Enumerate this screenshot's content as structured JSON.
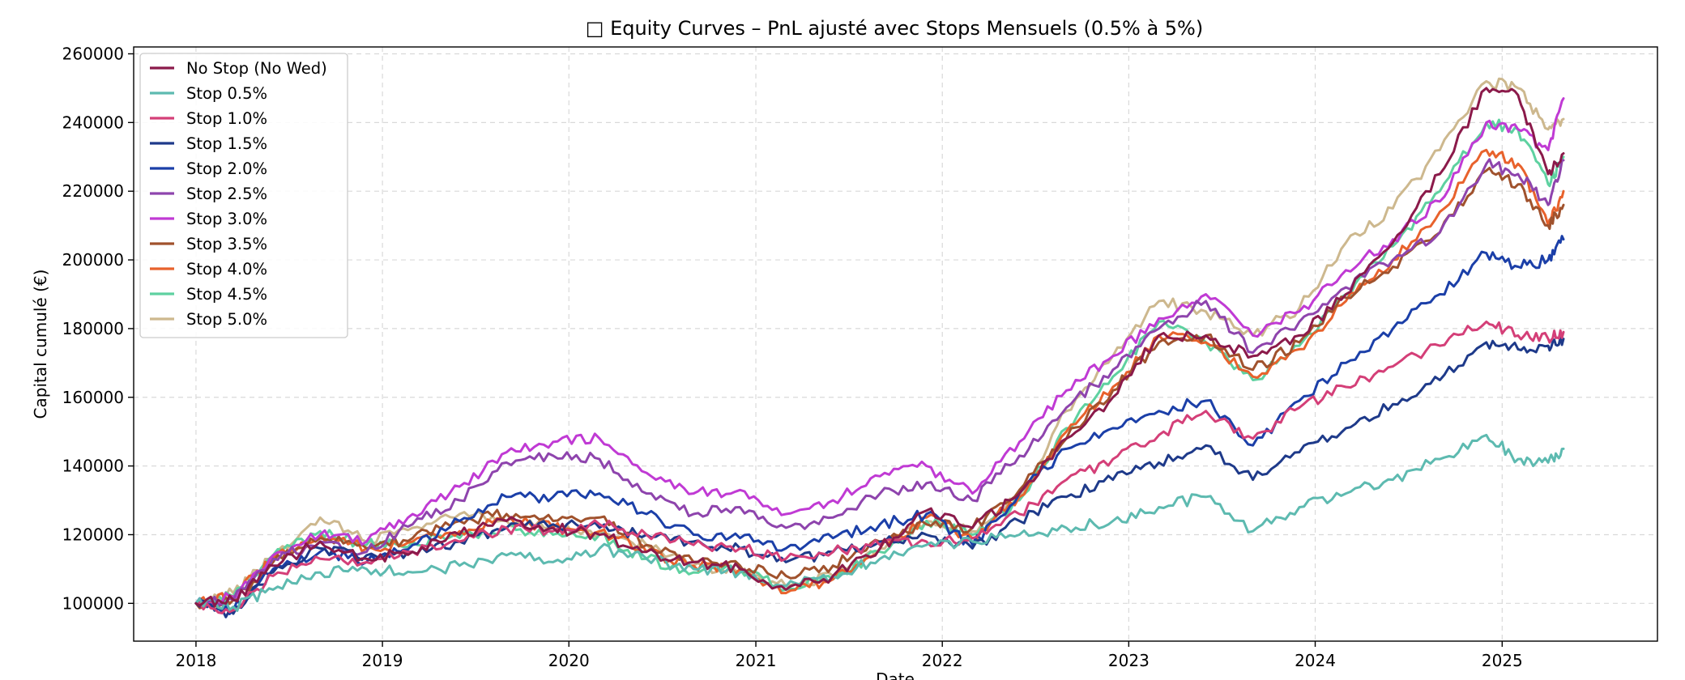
{
  "chart_data": {
    "type": "line",
    "title": "□ Equity Curves – PnL ajusté avec Stops Mensuels (0.5% à 5%)",
    "xlabel": "Date",
    "ylabel": "Capital cumulé (€)",
    "xlim": [
      "2017-09-01",
      "2025-11-01"
    ],
    "ylim": [
      89000,
      262000
    ],
    "x_ticks": [
      "2018",
      "2019",
      "2020",
      "2021",
      "2022",
      "2023",
      "2024",
      "2025"
    ],
    "y_ticks": [
      100000,
      120000,
      140000,
      160000,
      180000,
      200000,
      220000,
      240000,
      260000
    ],
    "grid": true,
    "legend_position": "upper-left",
    "x": [
      "2018-01-01",
      "2018-03-15",
      "2018-06-01",
      "2018-09-01",
      "2018-12-01",
      "2019-03-01",
      "2019-06-01",
      "2019-09-01",
      "2019-12-01",
      "2020-03-01",
      "2020-06-01",
      "2020-09-01",
      "2020-12-01",
      "2021-03-01",
      "2021-06-01",
      "2021-09-01",
      "2021-12-01",
      "2022-03-01",
      "2022-06-01",
      "2022-09-01",
      "2022-12-01",
      "2023-03-01",
      "2023-06-01",
      "2023-09-01",
      "2023-12-01",
      "2024-03-01",
      "2024-06-01",
      "2024-09-01",
      "2024-12-01",
      "2025-02-01",
      "2025-04-01",
      "2025-05-01"
    ],
    "series": [
      {
        "name": "No Stop (No Wed)",
        "color": "#8b1a4a",
        "values": [
          100000,
          101000,
          111000,
          118000,
          113000,
          115000,
          120000,
          124000,
          122000,
          120000,
          115000,
          112000,
          110000,
          104000,
          108000,
          116000,
          127000,
          122000,
          132000,
          148000,
          160000,
          178000,
          178000,
          172000,
          178000,
          190000,
          205000,
          225000,
          250000,
          248000,
          225000,
          231000
        ]
      },
      {
        "name": "Stop 0.5%",
        "color": "#5dbab0",
        "values": [
          100000,
          99000,
          104000,
          109000,
          110000,
          109000,
          111000,
          114000,
          112000,
          116000,
          113000,
          110000,
          109000,
          105000,
          108000,
          113000,
          117000,
          118000,
          120000,
          122000,
          124000,
          128000,
          131000,
          121000,
          128000,
          132000,
          136000,
          142000,
          149000,
          142000,
          141000,
          145000
        ]
      },
      {
        "name": "Stop 1.0%",
        "color": "#d43f78",
        "values": [
          100000,
          98000,
          108000,
          113000,
          112000,
          115000,
          118000,
          122000,
          121000,
          123000,
          120000,
          117000,
          116000,
          113000,
          115000,
          117000,
          118000,
          119000,
          126000,
          136000,
          142000,
          149000,
          156000,
          148000,
          157000,
          163000,
          169000,
          175000,
          182000,
          178000,
          177000,
          179000
        ]
      },
      {
        "name": "Stop 1.5%",
        "color": "#1e3a8a",
        "values": [
          100000,
          97000,
          109000,
          116000,
          114000,
          115000,
          118000,
          122000,
          123000,
          122000,
          120000,
          118000,
          116000,
          112000,
          115000,
          118000,
          120000,
          116000,
          124000,
          131000,
          136000,
          141000,
          146000,
          136000,
          144000,
          151000,
          158000,
          165000,
          176000,
          174000,
          175000,
          177000
        ]
      },
      {
        "name": "Stop 2.0%",
        "color": "#1b3fa8",
        "values": [
          100000,
          98000,
          110000,
          115000,
          112000,
          117000,
          124000,
          131000,
          131000,
          132000,
          126000,
          120000,
          119000,
          116000,
          119000,
          123000,
          126000,
          117000,
          132000,
          145000,
          151000,
          156000,
          159000,
          146000,
          159000,
          170000,
          180000,
          190000,
          202000,
          198000,
          200000,
          206000
        ]
      },
      {
        "name": "Stop 2.5%",
        "color": "#8e44ad",
        "values": [
          100000,
          101000,
          113000,
          118000,
          115000,
          123000,
          130000,
          141000,
          143000,
          142000,
          132000,
          126000,
          128000,
          122000,
          125000,
          132000,
          135000,
          130000,
          143000,
          157000,
          168000,
          180000,
          188000,
          173000,
          182000,
          192000,
          200000,
          208000,
          228000,
          225000,
          216000,
          229000
        ]
      },
      {
        "name": "Stop 3.0%",
        "color": "#c03ad4",
        "values": [
          100000,
          102000,
          114000,
          120000,
          118000,
          126000,
          134000,
          144000,
          147000,
          148000,
          138000,
          132000,
          133000,
          126000,
          130000,
          137000,
          140000,
          132000,
          147000,
          162000,
          172000,
          183000,
          190000,
          178000,
          185000,
          197000,
          206000,
          217000,
          240000,
          238000,
          232000,
          247000
        ]
      },
      {
        "name": "Stop 3.5%",
        "color": "#a0522d",
        "values": [
          100000,
          101000,
          112000,
          119000,
          116000,
          119000,
          124000,
          126000,
          124000,
          125000,
          117000,
          112000,
          111000,
          108000,
          111000,
          118000,
          123000,
          122000,
          133000,
          148000,
          162000,
          176000,
          178000,
          168000,
          176000,
          189000,
          198000,
          208000,
          226000,
          222000,
          210000,
          216000
        ]
      },
      {
        "name": "Stop 4.0%",
        "color": "#e8622c",
        "values": [
          100000,
          102000,
          113000,
          120000,
          116000,
          118000,
          121000,
          124000,
          122000,
          121000,
          115000,
          111000,
          110000,
          103000,
          107000,
          116000,
          125000,
          119000,
          131000,
          150000,
          163000,
          178000,
          176000,
          166000,
          174000,
          188000,
          200000,
          214000,
          232000,
          228000,
          210000,
          220000
        ]
      },
      {
        "name": "Stop 4.5%",
        "color": "#5ed1a0",
        "values": [
          100000,
          102000,
          114000,
          121000,
          117000,
          118000,
          119000,
          122000,
          120000,
          120000,
          113000,
          109000,
          110000,
          104000,
          107000,
          115000,
          124000,
          120000,
          130000,
          151000,
          166000,
          182000,
          176000,
          165000,
          175000,
          190000,
          204000,
          220000,
          240000,
          238000,
          222000,
          230000
        ]
      },
      {
        "name": "Stop 5.0%",
        "color": "#cdb88e",
        "values": [
          100000,
          103000,
          114000,
          125000,
          118000,
          122000,
          126000,
          124000,
          122000,
          121000,
          117000,
          111000,
          109000,
          105000,
          108000,
          116000,
          124000,
          121000,
          131000,
          156000,
          172000,
          188000,
          185000,
          178000,
          186000,
          205000,
          215000,
          232000,
          252000,
          250000,
          238000,
          241000
        ]
      }
    ]
  }
}
